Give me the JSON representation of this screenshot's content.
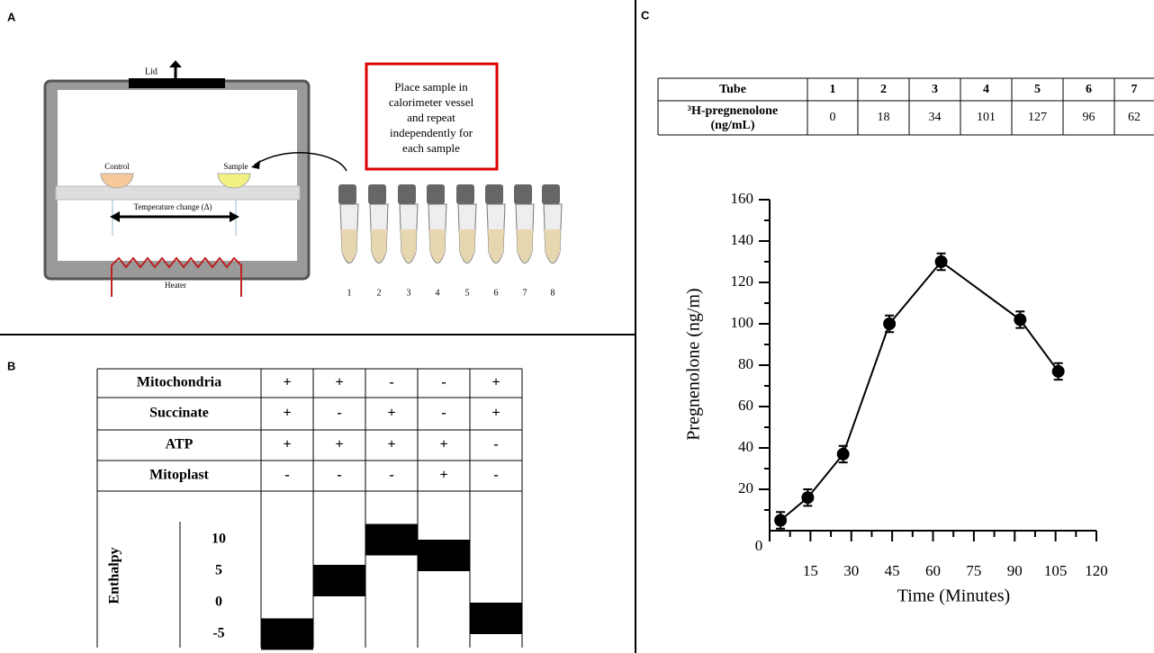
{
  "panels": {
    "a": "A",
    "b": "B",
    "c": "C"
  },
  "panel_a": {
    "lid": "Lid",
    "control": "Control",
    "sample": "Sample",
    "temperature_change": "Temperature change (Δ)",
    "heater": "Heater",
    "instruction": [
      "Place sample in",
      "calorimeter vessel",
      "and repeat",
      "independently for",
      "each sample"
    ],
    "tubes": [
      "1",
      "2",
      "3",
      "4",
      "5",
      "6",
      "7",
      "8"
    ]
  },
  "panel_b_table": {
    "row_labels": [
      "Mitochondria",
      "Succinate",
      "ATP",
      "Mitoplast"
    ],
    "rows": [
      [
        "+",
        "+",
        "-",
        "-",
        "+"
      ],
      [
        "+",
        "-",
        "+",
        "-",
        "+"
      ],
      [
        "+",
        "+",
        "+",
        "+",
        "-"
      ],
      [
        "-",
        "-",
        "-",
        "+",
        "-"
      ]
    ]
  },
  "panel_c_table": {
    "header": "Tube",
    "tubes": [
      "1",
      "2",
      "3",
      "4",
      "5",
      "6",
      "7"
    ],
    "row_label": [
      "³H-pregnenolone",
      "(ng/mL)"
    ],
    "values": [
      0,
      18,
      34,
      101,
      127,
      96,
      62
    ]
  },
  "chart_data": [
    {
      "type": "line",
      "x_label": "Time (Minutes)",
      "y_label": "Pregnenolone (ng/m)",
      "x": [
        4,
        14,
        27,
        44,
        63,
        92,
        106
      ],
      "values": [
        5,
        16,
        37,
        100,
        130,
        102,
        77
      ],
      "errors": [
        4,
        4,
        4,
        4,
        4,
        4,
        4
      ],
      "color": "#000000",
      "xlim": [
        0,
        120
      ],
      "ylim": [
        0,
        160
      ],
      "xticks": [
        0,
        15,
        30,
        45,
        60,
        75,
        90,
        105,
        120
      ],
      "yticks": [
        20,
        40,
        60,
        80,
        100,
        120,
        140,
        160
      ]
    },
    {
      "type": "floating-bar",
      "y_label": "Enthalpy",
      "values": [
        -5,
        3.5,
        10,
        7.5,
        -2.5
      ],
      "color": "#000000",
      "ylim": [
        -7,
        17
      ],
      "yticks": [
        -5,
        0,
        5,
        10
      ]
    }
  ]
}
